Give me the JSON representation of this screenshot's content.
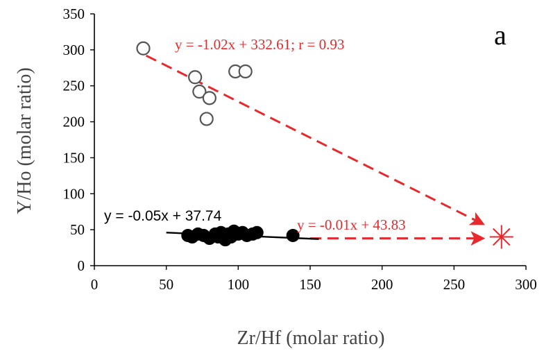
{
  "chart_data": {
    "type": "scatter",
    "title": "",
    "panel_label": "a",
    "xlabel": "Zr/Hf (molar ratio)",
    "ylabel": "Y/Ho (molar ratio)",
    "xlim": [
      0,
      300
    ],
    "ylim": [
      0,
      350
    ],
    "x_ticks": [
      "0",
      "50",
      "100",
      "150",
      "200",
      "250",
      "300"
    ],
    "y_ticks": [
      "0",
      "50",
      "100",
      "150",
      "200",
      "250",
      "300",
      "350"
    ],
    "grid": false,
    "series": [
      {
        "marker": "open-circle",
        "color": "#555555",
        "points": [
          [
            34,
            302
          ],
          [
            70,
            262
          ],
          [
            73,
            242
          ],
          [
            80,
            233
          ],
          [
            78,
            204
          ],
          [
            98,
            270
          ],
          [
            105,
            270
          ]
        ]
      },
      {
        "marker": "filled-circle",
        "color": "#000000",
        "points": [
          [
            65,
            42
          ],
          [
            68,
            40
          ],
          [
            72,
            44
          ],
          [
            76,
            42
          ],
          [
            80,
            38
          ],
          [
            84,
            44
          ],
          [
            86,
            40
          ],
          [
            88,
            46
          ],
          [
            90,
            42
          ],
          [
            91,
            36
          ],
          [
            93,
            44
          ],
          [
            95,
            40
          ],
          [
            97,
            48
          ],
          [
            100,
            44
          ],
          [
            103,
            46
          ],
          [
            106,
            42
          ],
          [
            110,
            44
          ],
          [
            113,
            46
          ],
          [
            138,
            42
          ]
        ]
      },
      {
        "marker": "asterisk",
        "color": "#e8282c",
        "points": [
          [
            283,
            40
          ]
        ]
      }
    ],
    "annotations": {
      "upper_eq": "y = -1.02x + 332.61; r = 0.93",
      "lower_eq_black": "y = -0.05x + 37.74",
      "lower_eq_red": "y = -0.01x + 43.83"
    },
    "lines": [
      {
        "kind": "dashed-arrow",
        "color": "#e8282c",
        "from": [
          36,
          292
        ],
        "to": [
          270,
          58
        ]
      },
      {
        "kind": "dashed-arrow",
        "color": "#e8282c",
        "from": [
          150,
          38
        ],
        "to": [
          270,
          38
        ]
      },
      {
        "kind": "solid",
        "color": "#000000",
        "from": [
          50,
          46
        ],
        "to": [
          156,
          37
        ]
      }
    ]
  }
}
